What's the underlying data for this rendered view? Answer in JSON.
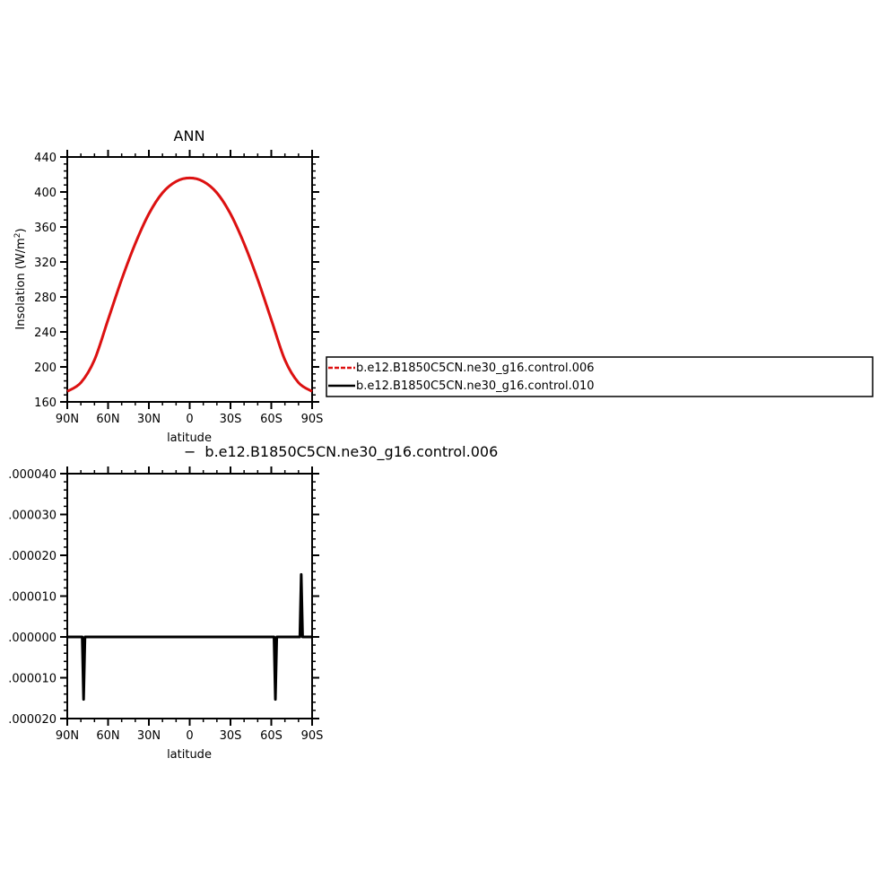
{
  "chart_data": [
    {
      "type": "line",
      "title": "ANN",
      "xlabel": "latitude",
      "ylabel": "Insolation (W/m",
      "ylabel_sup": "2",
      "ylabel_close": ")",
      "xlim": [
        90,
        -90
      ],
      "ylim": [
        160,
        440
      ],
      "xticks": [
        {
          "value": 90,
          "label": "90N"
        },
        {
          "value": 60,
          "label": "60N"
        },
        {
          "value": 30,
          "label": "30N"
        },
        {
          "value": 0,
          "label": "0"
        },
        {
          "value": -30,
          "label": "30S"
        },
        {
          "value": -60,
          "label": "60S"
        },
        {
          "value": -90,
          "label": "90S"
        }
      ],
      "yticks": [
        160,
        200,
        240,
        280,
        320,
        360,
        400,
        440
      ],
      "grid": false,
      "legend": "right",
      "x": [
        90,
        80,
        70,
        60,
        50,
        40,
        30,
        20,
        10,
        0,
        -10,
        -20,
        -30,
        -40,
        -50,
        -60,
        -70,
        -80,
        -90
      ],
      "series": [
        {
          "name": "b.e12.B1850C5CN.ne30_g16.control.006",
          "color": "#dd1111",
          "dash": "dashed",
          "values": [
            172,
            182,
            208,
            254,
            300,
            341,
            375,
            399,
            412,
            416,
            412,
            399,
            375,
            341,
            300,
            254,
            208,
            182,
            172
          ]
        },
        {
          "name": "b.e12.B1850C5CN.ne30_g16.control.010",
          "color": "#000000",
          "dash": "solid",
          "values": [
            172,
            182,
            208,
            254,
            300,
            341,
            375,
            399,
            412,
            416,
            412,
            399,
            375,
            341,
            300,
            254,
            208,
            182,
            172
          ]
        }
      ]
    },
    {
      "type": "line",
      "title": "b.e12.B1850C5CN.ne30_g16.control.006",
      "title_prefix": "−",
      "xlabel": "latitude",
      "xlim": [
        90,
        -90
      ],
      "ylim": [
        -2e-05,
        4e-05
      ],
      "xticks": [
        {
          "value": 90,
          "label": "90N"
        },
        {
          "value": 60,
          "label": "60N"
        },
        {
          "value": 30,
          "label": "30N"
        },
        {
          "value": 0,
          "label": "0"
        },
        {
          "value": -30,
          "label": "30S"
        },
        {
          "value": -60,
          "label": "60S"
        },
        {
          "value": -90,
          "label": "90S"
        }
      ],
      "yticks": [
        {
          "value": 4e-05,
          "label": ".000040"
        },
        {
          "value": 3e-05,
          "label": ".000030"
        },
        {
          "value": 2e-05,
          "label": ".000020"
        },
        {
          "value": 1e-05,
          "label": ".000010"
        },
        {
          "value": 0.0,
          "label": ".000000"
        },
        {
          "value": -1e-05,
          "label": ".000010"
        },
        {
          "value": -2e-05,
          "label": ".000020"
        }
      ],
      "grid": false,
      "series": [
        {
          "color": "#000000",
          "x": [
            90,
            80,
            79,
            78,
            77,
            -61,
            -62,
            -63,
            -64,
            -80,
            -81,
            -82,
            -83,
            -90
          ],
          "values": [
            0,
            0,
            0,
            -1.53e-05,
            0,
            0,
            0,
            -1.53e-05,
            0,
            0,
            0,
            1.53e-05,
            0,
            0
          ]
        }
      ]
    }
  ]
}
